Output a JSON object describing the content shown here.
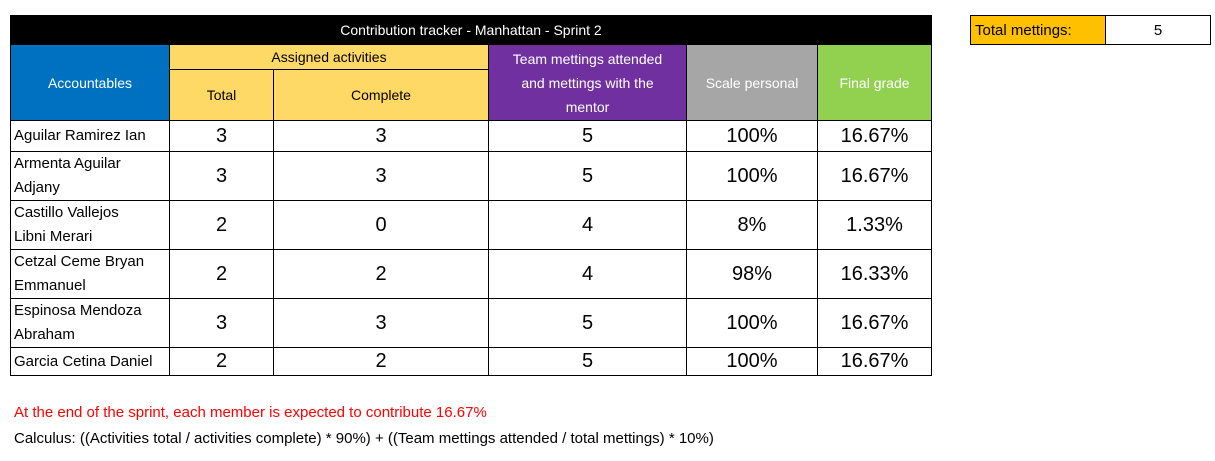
{
  "title": "Contribution tracker - Manhattan - Sprint 2",
  "headers": {
    "accountables": "Accountables",
    "assigned": "Assigned activities",
    "total": "Total",
    "complete": "Complete",
    "team_line1": "Team mettings attended",
    "team_line2": "and mettings with the",
    "team_line3": "mentor",
    "scale": "Scale personal",
    "final": "Final grade"
  },
  "rows": [
    {
      "name_line1": "Aguilar Ramirez Ian",
      "name_line2": "",
      "total": "3",
      "complete": "3",
      "team": "5",
      "scale": "100%",
      "final": "16.67%"
    },
    {
      "name_line1": "Armenta Aguilar",
      "name_line2": "Adjany",
      "total": "3",
      "complete": "3",
      "team": "5",
      "scale": "100%",
      "final": "16.67%"
    },
    {
      "name_line1": "Castillo Vallejos",
      "name_line2": "Libni Merari",
      "total": "2",
      "complete": "0",
      "team": "4",
      "scale": "8%",
      "final": "1.33%"
    },
    {
      "name_line1": "Cetzal Ceme Bryan",
      "name_line2": "Emmanuel",
      "total": "2",
      "complete": "2",
      "team": "4",
      "scale": "98%",
      "final": "16.33%"
    },
    {
      "name_line1": "Espinosa Mendoza",
      "name_line2": "Abraham",
      "total": "3",
      "complete": "3",
      "team": "5",
      "scale": "100%",
      "final": "16.67%"
    },
    {
      "name_line1": "Garcia Cetina Daniel",
      "name_line2": "",
      "total": "2",
      "complete": "2",
      "team": "5",
      "scale": "100%",
      "final": "16.67%"
    }
  ],
  "total_meetings": {
    "label": "Total mettings:",
    "value": "5"
  },
  "notes": {
    "expectation": "At the end of the sprint, each member is expected to contribute 16.67%",
    "calculus": "Calculus: ((Activities total / activities complete) * 90%) + ((Team mettings attended / total mettings) * 10%)"
  },
  "colors": {
    "title_bg": "#000000",
    "accountables_bg": "#0070c0",
    "assigned_bg": "#ffd966",
    "team_bg": "#7030a0",
    "scale_bg": "#a6a6a6",
    "final_bg": "#92d050",
    "total_meetings_bg": "#ffc000",
    "note_red": "#ff0000"
  }
}
